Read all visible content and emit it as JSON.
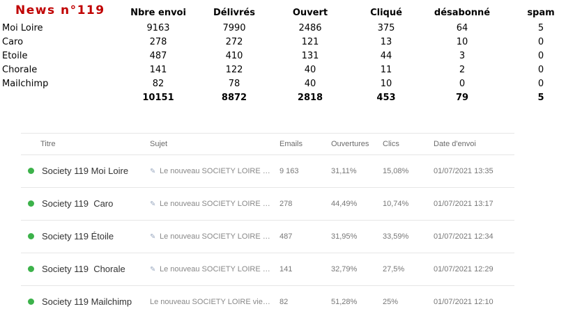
{
  "summary": {
    "title": "News n°119",
    "headers": [
      "Nbre envoi",
      "Délivrés",
      "Ouvert",
      "Cliqué",
      "désabonné",
      "spam"
    ],
    "rows": [
      {
        "label": "Moi Loire",
        "values": [
          "9163",
          "7990",
          "2486",
          "375",
          "64",
          "5"
        ]
      },
      {
        "label": "Caro",
        "values": [
          "278",
          "272",
          "121",
          "13",
          "10",
          "0"
        ]
      },
      {
        "label": "Etoile",
        "values": [
          "487",
          "410",
          "131",
          "44",
          "3",
          "0"
        ]
      },
      {
        "label": "Chorale",
        "values": [
          "141",
          "122",
          "40",
          "11",
          "2",
          "0"
        ]
      },
      {
        "label": "Mailchimp",
        "values": [
          "82",
          "78",
          "40",
          "10",
          "0",
          "0"
        ]
      }
    ],
    "totals": [
      "10151",
      "8872",
      "2818",
      "453",
      "79",
      "5"
    ]
  },
  "campaigns": {
    "headers": {
      "titre": "Titre",
      "sujet": "Sujet",
      "emails": "Emails",
      "ouvertures": "Ouvertures",
      "clics": "Clics",
      "date": "Date d'envoi"
    },
    "status_color": "#3cb24a",
    "rows": [
      {
        "title": "Society 119 Moi Loire",
        "subject": "Le nouveau SOCIETY LOIRE vi...",
        "has_icon": true,
        "emails": "9 163",
        "opens": "31,11%",
        "clicks": "15,08%",
        "date": "01/07/2021 13:35"
      },
      {
        "title": "Society 119  Caro",
        "subject": "Le nouveau SOCIETY LOIRE vi...",
        "has_icon": true,
        "emails": "278",
        "opens": "44,49%",
        "clicks": "10,74%",
        "date": "01/07/2021 13:17"
      },
      {
        "title": "Society 119 Étoile",
        "subject": "Le nouveau SOCIETY LOIRE vi...",
        "has_icon": true,
        "emails": "487",
        "opens": "31,95%",
        "clicks": "33,59%",
        "date": "01/07/2021 12:34"
      },
      {
        "title": "Society 119  Chorale",
        "subject": "Le nouveau SOCIETY LOIRE vi...",
        "has_icon": true,
        "emails": "141",
        "opens": "32,79%",
        "clicks": "27,5%",
        "date": "01/07/2021 12:29"
      },
      {
        "title": "Society 119 Mailchimp",
        "subject": "Le nouveau SOCIETY LOIRE vient ...",
        "has_icon": false,
        "emails": "82",
        "opens": "51,28%",
        "clicks": "25%",
        "date": "01/07/2021 12:10"
      }
    ]
  }
}
